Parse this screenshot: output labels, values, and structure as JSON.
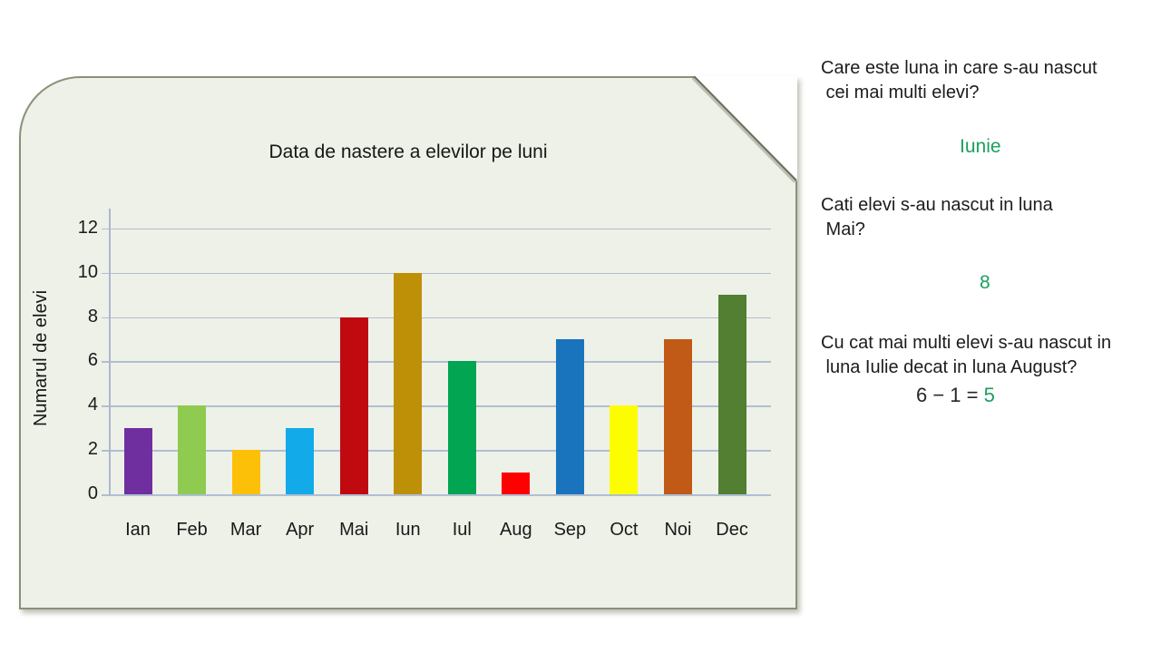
{
  "chart_data": {
    "type": "bar",
    "title": "Data de nastere a elevilor pe luni",
    "ylabel": "Numarul de elevi",
    "xlabel": "",
    "categories": [
      "Ian",
      "Feb",
      "Mar",
      "Apr",
      "Mai",
      "Iun",
      "Iul",
      "Aug",
      "Sep",
      "Oct",
      "Noi",
      "Dec"
    ],
    "values": [
      3,
      4,
      2,
      3,
      8,
      10,
      6,
      1,
      7,
      4,
      7,
      9
    ],
    "bar_colors": [
      "#6f2f9f",
      "#8ecb50",
      "#fdc008",
      "#12aae8",
      "#c00a10",
      "#bd9007",
      "#02a551",
      "#fe0000",
      "#1a74bd",
      "#fdfd02",
      "#c05a16",
      "#527f31"
    ],
    "ylim": [
      0,
      12
    ],
    "yticks": [
      0,
      2,
      4,
      6,
      8,
      10,
      12
    ],
    "grid": true,
    "legend": "none"
  },
  "questions": [
    {
      "lines": [
        "Care este luna in care s-au nascut",
        " cei mai multi elevi?"
      ],
      "answer": "Iunie"
    },
    {
      "lines": [
        "Cati elevi s-au nascut in luna",
        " Mai?"
      ],
      "answer": "8"
    },
    {
      "lines": [
        "Cu cat mai multi elevi s-au nascut in",
        " luna Iulie decat in luna August?"
      ],
      "equation": "6 − 1 = ",
      "answer": "5"
    }
  ],
  "colors": {
    "answer_green": "#1aa05c",
    "text": "#1c1c1c",
    "panel_bg": "#eef1e8",
    "panel_border": "#8a9178",
    "gridline": "#b1bed3",
    "axis": "#a9b8cd",
    "fold_edge": "#6b7158"
  }
}
